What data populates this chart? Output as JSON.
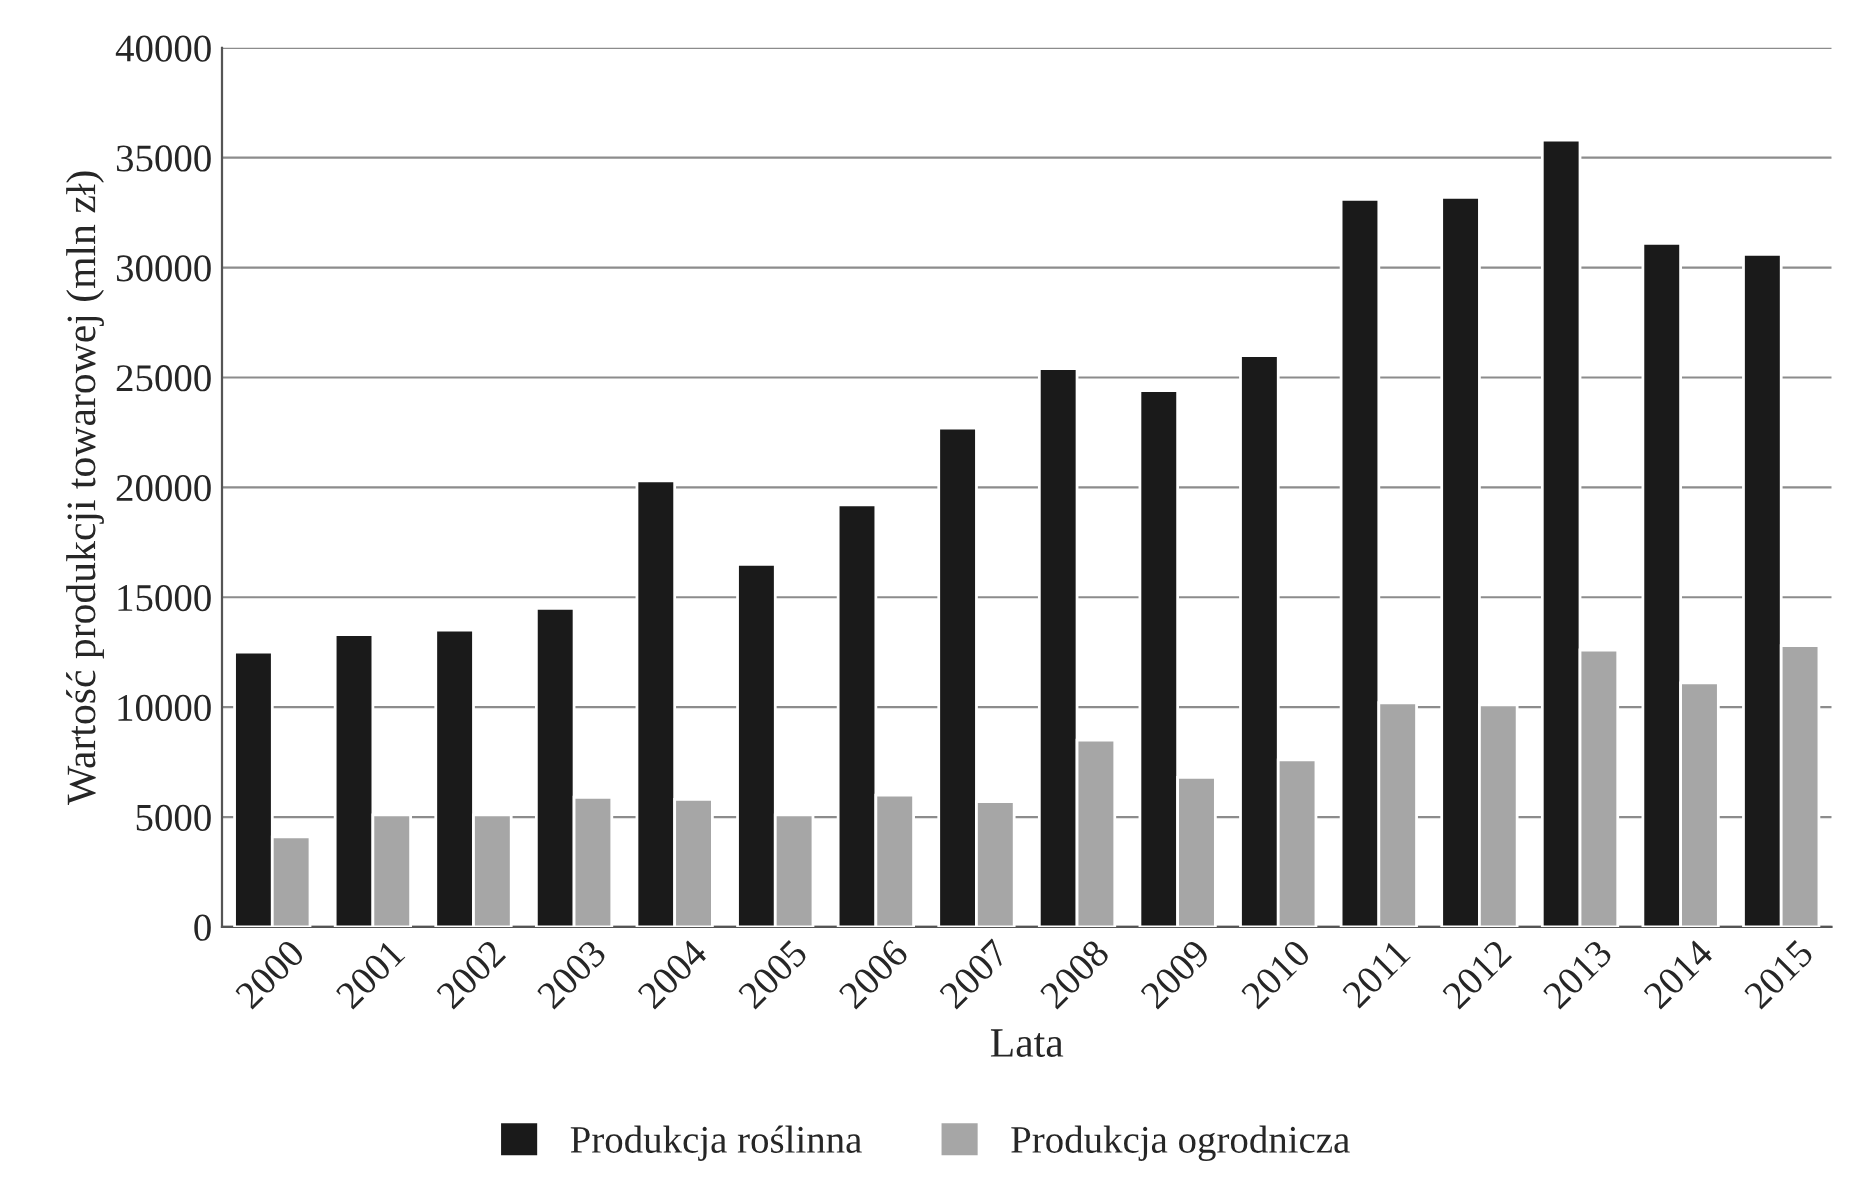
{
  "chart_data": {
    "type": "bar",
    "xlabel": "Lata",
    "ylabel": "Wartość produkcji towarowej (mln zł)",
    "categories": [
      "2000",
      "2001",
      "2002",
      "2003",
      "2004",
      "2005",
      "2006",
      "2007",
      "2008",
      "2009",
      "2010",
      "2011",
      "2012",
      "2013",
      "2014",
      "2015"
    ],
    "series": [
      {
        "name": "Produkcja roślinna",
        "color": "#1a1a1a",
        "values": [
          12500,
          13300,
          13500,
          14500,
          20300,
          16500,
          19200,
          22700,
          25400,
          24400,
          26000,
          33100,
          33200,
          35800,
          31100,
          30600
        ]
      },
      {
        "name": "Produkcja ogrodnicza",
        "color": "#a6a6a6",
        "values": [
          4100,
          5100,
          5100,
          5900,
          5800,
          5100,
          6000,
          5700,
          8500,
          6800,
          7600,
          10200,
          10100,
          12600,
          11100,
          12800
        ]
      }
    ],
    "ylim": [
      0,
      40000
    ],
    "yticks": [
      0,
      5000,
      10000,
      15000,
      20000,
      25000,
      30000,
      35000,
      40000
    ],
    "grid": "y",
    "legend": "bottom"
  }
}
